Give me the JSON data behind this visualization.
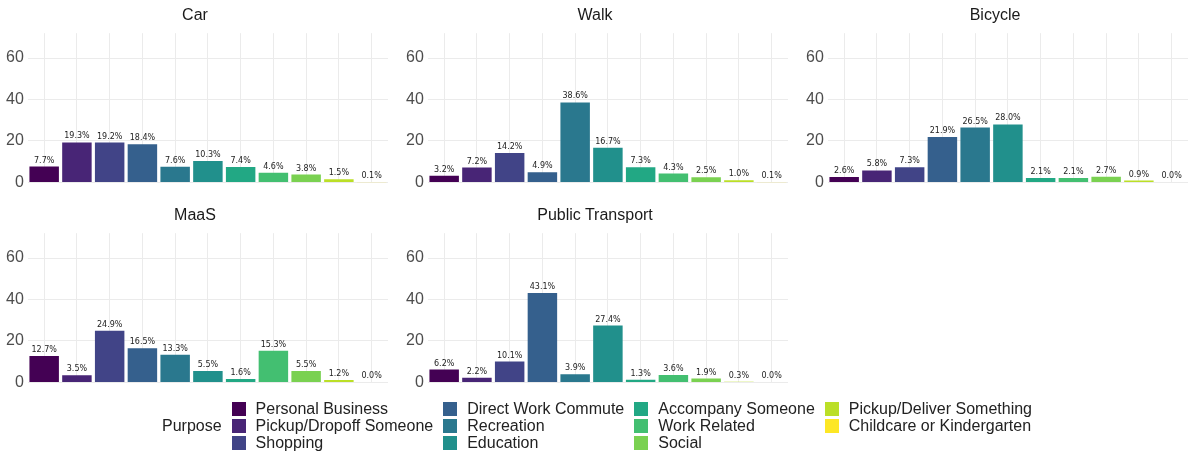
{
  "chart_data": [
    {
      "type": "bar",
      "title": "Car",
      "categories": [
        null,
        null,
        null,
        null,
        null,
        null,
        null,
        null,
        null,
        null,
        null
      ],
      "ylim": [
        0,
        72
      ],
      "yticks": [
        0,
        20,
        40,
        60
      ],
      "grid": true,
      "tick_labels": "y",
      "legend": "bottom",
      "legend_title": "Purpose",
      "series": [
        {
          "name": "Personal Business",
          "color": "#440154",
          "values": [
            7.7,
            null,
            null,
            null,
            null,
            null,
            null,
            null,
            null,
            null,
            null
          ],
          "value_labels": [
            "7.7%",
            null,
            null,
            null,
            null,
            null,
            null,
            null,
            null,
            null,
            null
          ]
        },
        {
          "name": "Pickup/Dropoff Someone",
          "color": "#482576",
          "values": [
            null,
            19.3,
            null,
            null,
            null,
            null,
            null,
            null,
            null,
            null,
            null
          ],
          "value_labels": [
            null,
            "19.3%",
            null,
            null,
            null,
            null,
            null,
            null,
            null,
            null,
            null
          ]
        },
        {
          "name": "Shopping",
          "color": "#414487",
          "values": [
            null,
            null,
            19.2,
            null,
            null,
            null,
            null,
            null,
            null,
            null,
            null
          ],
          "value_labels": [
            null,
            null,
            "19.2%",
            null,
            null,
            null,
            null,
            null,
            null,
            null,
            null
          ]
        },
        {
          "name": "Direct Work Commute",
          "color": "#35608d",
          "values": [
            null,
            null,
            null,
            18.4,
            null,
            null,
            null,
            null,
            null,
            null,
            null
          ],
          "value_labels": [
            null,
            null,
            null,
            "18.4%",
            null,
            null,
            null,
            null,
            null,
            null,
            null
          ]
        },
        {
          "name": "Recreation",
          "color": "#2a788e",
          "values": [
            null,
            null,
            null,
            null,
            7.6,
            null,
            null,
            null,
            null,
            null,
            null
          ],
          "value_labels": [
            null,
            null,
            null,
            null,
            "7.6%",
            null,
            null,
            null,
            null,
            null,
            null
          ]
        },
        {
          "name": "Education",
          "color": "#21908c",
          "values": [
            null,
            null,
            null,
            null,
            null,
            10.3,
            null,
            null,
            null,
            null,
            null
          ],
          "value_labels": [
            null,
            null,
            null,
            null,
            null,
            "10.3%",
            null,
            null,
            null,
            null,
            null
          ]
        },
        {
          "name": "Accompany Someone",
          "color": "#22a884",
          "values": [
            null,
            null,
            null,
            null,
            null,
            null,
            7.4,
            null,
            null,
            null,
            null
          ],
          "value_labels": [
            null,
            null,
            null,
            null,
            null,
            null,
            "7.4%",
            null,
            null,
            null,
            null
          ]
        },
        {
          "name": "Work Related",
          "color": "#43bf71",
          "values": [
            null,
            null,
            null,
            null,
            null,
            null,
            null,
            4.6,
            null,
            null,
            null
          ],
          "value_labels": [
            null,
            null,
            null,
            null,
            null,
            null,
            null,
            "4.6%",
            null,
            null,
            null
          ]
        },
        {
          "name": "Social",
          "color": "#7ad151",
          "values": [
            null,
            null,
            null,
            null,
            null,
            null,
            null,
            null,
            3.8,
            null,
            null
          ],
          "value_labels": [
            null,
            null,
            null,
            null,
            null,
            null,
            null,
            null,
            "3.8%",
            null,
            null
          ]
        },
        {
          "name": "Pickup/Deliver Something",
          "color": "#bbdf27",
          "values": [
            null,
            null,
            null,
            null,
            null,
            null,
            null,
            null,
            null,
            1.5,
            null
          ],
          "value_labels": [
            null,
            null,
            null,
            null,
            null,
            null,
            null,
            null,
            null,
            "1.5%",
            null
          ]
        },
        {
          "name": "Childcare or Kindergarten",
          "color": "#fde725",
          "values": [
            null,
            null,
            null,
            null,
            null,
            null,
            null,
            null,
            null,
            null,
            0.1
          ],
          "value_labels": [
            null,
            null,
            null,
            null,
            null,
            null,
            null,
            null,
            null,
            null,
            "0.1%"
          ]
        }
      ]
    },
    {
      "type": "bar",
      "title": "Walk",
      "categories": [
        null,
        null,
        null,
        null,
        null,
        null,
        null,
        null,
        null,
        null,
        null
      ],
      "ylim": [
        0,
        72
      ],
      "yticks": [
        0,
        20,
        40,
        60
      ],
      "grid": true,
      "tick_labels": "y",
      "series": [
        {
          "color": "#440154",
          "values": [
            3.2,
            null,
            null,
            null,
            null,
            null,
            null,
            null,
            null,
            null,
            null
          ],
          "value_labels": [
            "3.2%",
            null,
            null,
            null,
            null,
            null,
            null,
            null,
            null,
            null,
            null
          ]
        },
        {
          "color": "#482576",
          "values": [
            null,
            7.2,
            null,
            null,
            null,
            null,
            null,
            null,
            null,
            null,
            null
          ],
          "value_labels": [
            null,
            "7.2%",
            null,
            null,
            null,
            null,
            null,
            null,
            null,
            null,
            null
          ]
        },
        {
          "color": "#414487",
          "values": [
            null,
            null,
            14.2,
            null,
            null,
            null,
            null,
            null,
            null,
            null,
            null
          ],
          "value_labels": [
            null,
            null,
            "14.2%",
            null,
            null,
            null,
            null,
            null,
            null,
            null,
            null
          ]
        },
        {
          "color": "#35608d",
          "values": [
            null,
            null,
            null,
            4.9,
            null,
            null,
            null,
            null,
            null,
            null,
            null
          ],
          "value_labels": [
            null,
            null,
            null,
            "4.9%",
            null,
            null,
            null,
            null,
            null,
            null,
            null
          ]
        },
        {
          "color": "#2a788e",
          "values": [
            null,
            null,
            null,
            null,
            38.6,
            null,
            null,
            null,
            null,
            null,
            null
          ],
          "value_labels": [
            null,
            null,
            null,
            null,
            "38.6%",
            null,
            null,
            null,
            null,
            null,
            null
          ]
        },
        {
          "color": "#21908c",
          "values": [
            null,
            null,
            null,
            null,
            null,
            16.7,
            null,
            null,
            null,
            null,
            null
          ],
          "value_labels": [
            null,
            null,
            null,
            null,
            null,
            "16.7%",
            null,
            null,
            null,
            null,
            null
          ]
        },
        {
          "color": "#22a884",
          "values": [
            null,
            null,
            null,
            null,
            null,
            null,
            7.3,
            null,
            null,
            null,
            null
          ],
          "value_labels": [
            null,
            null,
            null,
            null,
            null,
            null,
            "7.3%",
            null,
            null,
            null,
            null
          ]
        },
        {
          "color": "#43bf71",
          "values": [
            null,
            null,
            null,
            null,
            null,
            null,
            null,
            4.3,
            null,
            null,
            null
          ],
          "value_labels": [
            null,
            null,
            null,
            null,
            null,
            null,
            null,
            "4.3%",
            null,
            null,
            null
          ]
        },
        {
          "color": "#7ad151",
          "values": [
            null,
            null,
            null,
            null,
            null,
            null,
            null,
            null,
            2.5,
            null,
            null
          ],
          "value_labels": [
            null,
            null,
            null,
            null,
            null,
            null,
            null,
            null,
            "2.5%",
            null,
            null
          ]
        },
        {
          "color": "#bbdf27",
          "values": [
            null,
            null,
            null,
            null,
            null,
            null,
            null,
            null,
            null,
            1.0,
            null
          ],
          "value_labels": [
            null,
            null,
            null,
            null,
            null,
            null,
            null,
            null,
            null,
            "1.0%",
            null
          ]
        },
        {
          "color": "#fde725",
          "values": [
            null,
            null,
            null,
            null,
            null,
            null,
            null,
            null,
            null,
            null,
            0.1
          ],
          "value_labels": [
            null,
            null,
            null,
            null,
            null,
            null,
            null,
            null,
            null,
            null,
            "0.1%"
          ]
        }
      ]
    },
    {
      "type": "bar",
      "title": "Bicycle",
      "categories": [
        null,
        null,
        null,
        null,
        null,
        null,
        null,
        null,
        null,
        null,
        null
      ],
      "ylim": [
        0,
        72
      ],
      "yticks": [
        0,
        20,
        40,
        60
      ],
      "grid": true,
      "tick_labels": "y",
      "series": [
        {
          "color": "#440154",
          "values": [
            2.6,
            null,
            null,
            null,
            null,
            null,
            null,
            null,
            null,
            null,
            null
          ],
          "value_labels": [
            "2.6%",
            null,
            null,
            null,
            null,
            null,
            null,
            null,
            null,
            null,
            null
          ]
        },
        {
          "color": "#482576",
          "values": [
            null,
            5.8,
            null,
            null,
            null,
            null,
            null,
            null,
            null,
            null,
            null
          ],
          "value_labels": [
            null,
            "5.8%",
            null,
            null,
            null,
            null,
            null,
            null,
            null,
            null,
            null
          ]
        },
        {
          "color": "#414487",
          "values": [
            null,
            null,
            7.3,
            null,
            null,
            null,
            null,
            null,
            null,
            null,
            null
          ],
          "value_labels": [
            null,
            null,
            "7.3%",
            null,
            null,
            null,
            null,
            null,
            null,
            null,
            null
          ]
        },
        {
          "color": "#35608d",
          "values": [
            null,
            null,
            null,
            21.9,
            null,
            null,
            null,
            null,
            null,
            null,
            null
          ],
          "value_labels": [
            null,
            null,
            null,
            "21.9%",
            null,
            null,
            null,
            null,
            null,
            null,
            null
          ]
        },
        {
          "color": "#2a788e",
          "values": [
            null,
            null,
            null,
            null,
            26.5,
            null,
            null,
            null,
            null,
            null,
            null
          ],
          "value_labels": [
            null,
            null,
            null,
            null,
            "26.5%",
            null,
            null,
            null,
            null,
            null,
            null
          ]
        },
        {
          "color": "#21908c",
          "values": [
            null,
            null,
            null,
            null,
            null,
            28.0,
            null,
            null,
            null,
            null,
            null
          ],
          "value_labels": [
            null,
            null,
            null,
            null,
            null,
            "28.0%",
            null,
            null,
            null,
            null,
            null
          ]
        },
        {
          "color": "#22a884",
          "values": [
            null,
            null,
            null,
            null,
            null,
            null,
            2.1,
            null,
            null,
            null,
            null
          ],
          "value_labels": [
            null,
            null,
            null,
            null,
            null,
            null,
            "2.1%",
            null,
            null,
            null,
            null
          ]
        },
        {
          "color": "#43bf71",
          "values": [
            null,
            null,
            null,
            null,
            null,
            null,
            null,
            2.1,
            null,
            null,
            null
          ],
          "value_labels": [
            null,
            null,
            null,
            null,
            null,
            null,
            null,
            "2.1%",
            null,
            null,
            null
          ]
        },
        {
          "color": "#7ad151",
          "values": [
            null,
            null,
            null,
            null,
            null,
            null,
            null,
            null,
            2.7,
            null,
            null
          ],
          "value_labels": [
            null,
            null,
            null,
            null,
            null,
            null,
            null,
            null,
            "2.7%",
            null,
            null
          ]
        },
        {
          "color": "#bbdf27",
          "values": [
            null,
            null,
            null,
            null,
            null,
            null,
            null,
            null,
            null,
            0.9,
            null
          ],
          "value_labels": [
            null,
            null,
            null,
            null,
            null,
            null,
            null,
            null,
            null,
            "0.9%",
            null
          ]
        },
        {
          "color": "#fde725",
          "values": [
            null,
            null,
            null,
            null,
            null,
            null,
            null,
            null,
            null,
            null,
            0.0
          ],
          "value_labels": [
            null,
            null,
            null,
            null,
            null,
            null,
            null,
            null,
            null,
            null,
            "0.0%"
          ]
        }
      ]
    },
    {
      "type": "bar",
      "title": "MaaS",
      "categories": [
        null,
        null,
        null,
        null,
        null,
        null,
        null,
        null,
        null,
        null,
        null
      ],
      "ylim": [
        0,
        72
      ],
      "yticks": [
        0,
        20,
        40,
        60
      ],
      "grid": true,
      "tick_labels": "y",
      "series": [
        {
          "color": "#440154",
          "values": [
            12.7,
            null,
            null,
            null,
            null,
            null,
            null,
            null,
            null,
            null,
            null
          ],
          "value_labels": [
            "12.7%",
            null,
            null,
            null,
            null,
            null,
            null,
            null,
            null,
            null,
            null
          ]
        },
        {
          "color": "#482576",
          "values": [
            null,
            3.5,
            null,
            null,
            null,
            null,
            null,
            null,
            null,
            null,
            null
          ],
          "value_labels": [
            null,
            "3.5%",
            null,
            null,
            null,
            null,
            null,
            null,
            null,
            null,
            null
          ]
        },
        {
          "color": "#414487",
          "values": [
            null,
            null,
            24.9,
            null,
            null,
            null,
            null,
            null,
            null,
            null,
            null
          ],
          "value_labels": [
            null,
            null,
            "24.9%",
            null,
            null,
            null,
            null,
            null,
            null,
            null,
            null
          ]
        },
        {
          "color": "#35608d",
          "values": [
            null,
            null,
            null,
            16.5,
            null,
            null,
            null,
            null,
            null,
            null,
            null
          ],
          "value_labels": [
            null,
            null,
            null,
            "16.5%",
            null,
            null,
            null,
            null,
            null,
            null,
            null
          ]
        },
        {
          "color": "#2a788e",
          "values": [
            null,
            null,
            null,
            null,
            13.3,
            null,
            null,
            null,
            null,
            null,
            null
          ],
          "value_labels": [
            null,
            null,
            null,
            null,
            "13.3%",
            null,
            null,
            null,
            null,
            null,
            null
          ]
        },
        {
          "color": "#21908c",
          "values": [
            null,
            null,
            null,
            null,
            null,
            5.5,
            null,
            null,
            null,
            null,
            null
          ],
          "value_labels": [
            null,
            null,
            null,
            null,
            null,
            "5.5%",
            null,
            null,
            null,
            null,
            null
          ]
        },
        {
          "color": "#22a884",
          "values": [
            null,
            null,
            null,
            null,
            null,
            null,
            1.6,
            null,
            null,
            null,
            null
          ],
          "value_labels": [
            null,
            null,
            null,
            null,
            null,
            null,
            "1.6%",
            null,
            null,
            null,
            null
          ]
        },
        {
          "color": "#43bf71",
          "values": [
            null,
            null,
            null,
            null,
            null,
            null,
            null,
            15.3,
            null,
            null,
            null
          ],
          "value_labels": [
            null,
            null,
            null,
            null,
            null,
            null,
            null,
            "15.3%",
            null,
            null,
            null
          ]
        },
        {
          "color": "#7ad151",
          "values": [
            null,
            null,
            null,
            null,
            null,
            null,
            null,
            null,
            5.5,
            null,
            null
          ],
          "value_labels": [
            null,
            null,
            null,
            null,
            null,
            null,
            null,
            null,
            "5.5%",
            null,
            null
          ]
        },
        {
          "color": "#bbdf27",
          "values": [
            null,
            null,
            null,
            null,
            null,
            null,
            null,
            null,
            null,
            1.2,
            null
          ],
          "value_labels": [
            null,
            null,
            null,
            null,
            null,
            null,
            null,
            null,
            null,
            "1.2%",
            null
          ]
        },
        {
          "color": "#fde725",
          "values": [
            null,
            null,
            null,
            null,
            null,
            null,
            null,
            null,
            null,
            null,
            0.0
          ],
          "value_labels": [
            null,
            null,
            null,
            null,
            null,
            null,
            null,
            null,
            null,
            null,
            "0.0%"
          ]
        }
      ]
    },
    {
      "type": "bar",
      "title": "Public Transport",
      "categories": [
        null,
        null,
        null,
        null,
        null,
        null,
        null,
        null,
        null,
        null,
        null
      ],
      "ylim": [
        0,
        72
      ],
      "yticks": [
        0,
        20,
        40,
        60
      ],
      "grid": true,
      "tick_labels": "y",
      "series": [
        {
          "color": "#440154",
          "values": [
            6.2,
            null,
            null,
            null,
            null,
            null,
            null,
            null,
            null,
            null,
            null
          ],
          "value_labels": [
            "6.2%",
            null,
            null,
            null,
            null,
            null,
            null,
            null,
            null,
            null,
            null
          ]
        },
        {
          "color": "#482576",
          "values": [
            null,
            2.2,
            null,
            null,
            null,
            null,
            null,
            null,
            null,
            null,
            null
          ],
          "value_labels": [
            null,
            "2.2%",
            null,
            null,
            null,
            null,
            null,
            null,
            null,
            null,
            null
          ]
        },
        {
          "color": "#414487",
          "values": [
            null,
            null,
            10.1,
            null,
            null,
            null,
            null,
            null,
            null,
            null,
            null
          ],
          "value_labels": [
            null,
            null,
            "10.1%",
            null,
            null,
            null,
            null,
            null,
            null,
            null,
            null
          ]
        },
        {
          "color": "#35608d",
          "values": [
            null,
            null,
            null,
            43.1,
            null,
            null,
            null,
            null,
            null,
            null,
            null
          ],
          "value_labels": [
            null,
            null,
            null,
            "43.1%",
            null,
            null,
            null,
            null,
            null,
            null,
            null
          ]
        },
        {
          "color": "#2a788e",
          "values": [
            null,
            null,
            null,
            null,
            3.9,
            null,
            null,
            null,
            null,
            null,
            null
          ],
          "value_labels": [
            null,
            null,
            null,
            null,
            "3.9%",
            null,
            null,
            null,
            null,
            null,
            null
          ]
        },
        {
          "color": "#21908c",
          "values": [
            null,
            null,
            null,
            null,
            null,
            27.4,
            null,
            null,
            null,
            null,
            null
          ],
          "value_labels": [
            null,
            null,
            null,
            null,
            null,
            "27.4%",
            null,
            null,
            null,
            null,
            null
          ]
        },
        {
          "color": "#22a884",
          "values": [
            null,
            null,
            null,
            null,
            null,
            null,
            1.3,
            null,
            null,
            null,
            null
          ],
          "value_labels": [
            null,
            null,
            null,
            null,
            null,
            null,
            "1.3%",
            null,
            null,
            null,
            null
          ]
        },
        {
          "color": "#43bf71",
          "values": [
            null,
            null,
            null,
            null,
            null,
            null,
            null,
            3.6,
            null,
            null,
            null
          ],
          "value_labels": [
            null,
            null,
            null,
            null,
            null,
            null,
            null,
            "3.6%",
            null,
            null,
            null
          ]
        },
        {
          "color": "#7ad151",
          "values": [
            null,
            null,
            null,
            null,
            null,
            null,
            null,
            null,
            1.9,
            null,
            null
          ],
          "value_labels": [
            null,
            null,
            null,
            null,
            null,
            null,
            null,
            null,
            "1.9%",
            null,
            null
          ]
        },
        {
          "color": "#bbdf27",
          "values": [
            null,
            null,
            null,
            null,
            null,
            null,
            null,
            null,
            null,
            0.3,
            null
          ],
          "value_labels": [
            null,
            null,
            null,
            null,
            null,
            null,
            null,
            null,
            null,
            "0.3%",
            null
          ]
        },
        {
          "color": "#fde725",
          "values": [
            null,
            null,
            null,
            null,
            null,
            null,
            null,
            null,
            null,
            null,
            0.0
          ],
          "value_labels": [
            null,
            null,
            null,
            null,
            null,
            null,
            null,
            null,
            null,
            null,
            "0.0%"
          ]
        }
      ]
    }
  ]
}
